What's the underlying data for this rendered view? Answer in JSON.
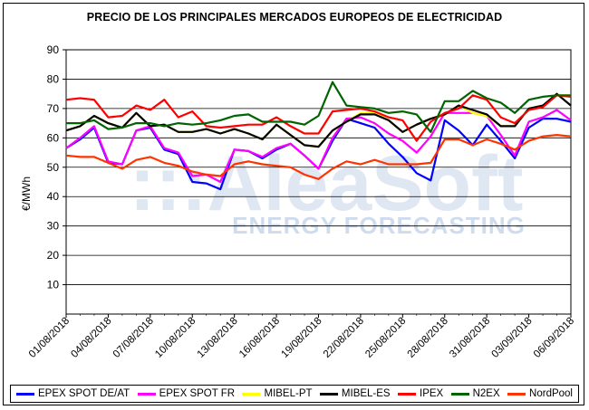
{
  "chart_data": {
    "type": "line",
    "title": "PRECIO DE LOS PRINCIPALES MERCADOS EUROPEOS DE ELECTRICIDAD",
    "ylabel": "€/MWh",
    "xlabel": "",
    "ylim": [
      0,
      90
    ],
    "yticks": [
      10,
      20,
      30,
      40,
      50,
      60,
      70,
      80,
      90
    ],
    "grid": true,
    "legend_position": "bottom",
    "x": [
      "01/08/2018",
      "02/08/2018",
      "03/08/2018",
      "04/08/2018",
      "05/08/2018",
      "06/08/2018",
      "07/08/2018",
      "08/08/2018",
      "09/08/2018",
      "10/08/2018",
      "11/08/2018",
      "12/08/2018",
      "13/08/2018",
      "14/08/2018",
      "15/08/2018",
      "16/08/2018",
      "17/08/2018",
      "18/08/2018",
      "19/08/2018",
      "20/08/2018",
      "21/08/2018",
      "22/08/2018",
      "23/08/2018",
      "24/08/2018",
      "25/08/2018",
      "26/08/2018",
      "27/08/2018",
      "28/08/2018",
      "29/08/2018",
      "30/08/2018",
      "31/08/2018",
      "01/09/2018",
      "02/09/2018",
      "03/09/2018",
      "04/09/2018",
      "05/09/2018",
      "06/09/2018"
    ],
    "tick_labels": [
      "01/08/2018",
      "04/08/2018",
      "07/08/2018",
      "10/08/2018",
      "13/08/2018",
      "16/08/2018",
      "19/08/2018",
      "22/08/2018",
      "25/08/2018",
      "28/08/2018",
      "31/08/2018",
      "03/09/2018",
      "06/09/2018"
    ],
    "series": [
      {
        "name": "EPEX SPOT DE/AT",
        "color": "#0000ff",
        "values": [
          56.5,
          59.5,
          63.5,
          51.5,
          51,
          62.5,
          63.5,
          56,
          54.5,
          45,
          44.5,
          42.5,
          56,
          55.5,
          53,
          56,
          58,
          54,
          49.5,
          59,
          66.5,
          65,
          63.5,
          58,
          53.5,
          48,
          45.5,
          66,
          62.5,
          57.5,
          64.5,
          59,
          53,
          63.5,
          66.5,
          66.5,
          65.5
        ]
      },
      {
        "name": "EPEX SPOT FR",
        "color": "#ff00ff",
        "values": [
          56.5,
          60,
          64,
          52,
          51,
          62.5,
          64,
          56.5,
          55,
          47,
          47.5,
          45,
          56,
          55.5,
          53.5,
          56.5,
          58,
          54,
          49.5,
          60,
          66.5,
          67,
          65,
          61.5,
          59,
          55,
          60.5,
          68.5,
          68.5,
          68.5,
          67.5,
          61,
          54,
          65.5,
          67,
          69.5,
          66
        ]
      },
      {
        "name": "MIBEL-PT",
        "color": "#ffff00",
        "values": [
          62.5,
          64,
          67.5,
          65,
          63.5,
          68.5,
          64,
          64.5,
          62,
          62,
          63,
          61.5,
          63,
          61.5,
          59.5,
          64.5,
          61,
          57.5,
          57,
          62.5,
          65.5,
          68.5,
          68.5,
          66,
          62,
          64.5,
          66.5,
          68,
          71,
          68.5,
          67.5,
          64,
          64,
          70,
          71,
          74.5,
          74.5
        ]
      },
      {
        "name": "MIBEL-ES",
        "color": "#000000",
        "values": [
          62.5,
          64,
          67.5,
          65,
          63.5,
          68.5,
          64,
          64.5,
          62,
          62,
          63,
          61.5,
          63,
          61.5,
          59.5,
          64.5,
          61,
          57.5,
          57,
          62.5,
          65.5,
          68,
          68,
          66,
          62,
          64.5,
          66.5,
          68,
          71,
          69.5,
          68,
          64,
          64,
          70,
          71,
          75,
          71
        ]
      },
      {
        "name": "IPEX",
        "color": "#ff0000",
        "values": [
          73,
          73.5,
          73,
          67,
          67.5,
          71,
          69.5,
          73,
          67,
          69,
          64,
          63.5,
          64,
          64.5,
          64.5,
          67,
          64,
          61.5,
          61.5,
          69,
          69.5,
          70,
          69,
          67,
          66,
          59,
          65.5,
          68.5,
          70,
          74.5,
          73,
          67,
          65,
          69.5,
          70.5,
          74.5,
          74
        ]
      },
      {
        "name": "N2EX",
        "color": "#006400",
        "values": [
          65,
          65,
          66,
          63,
          63.5,
          65,
          65,
          64,
          65,
          64.5,
          65,
          66,
          67.5,
          68,
          65.5,
          65.5,
          65.5,
          64.5,
          67.5,
          79,
          71,
          70.5,
          70,
          68.5,
          69,
          68,
          62,
          72.5,
          72.5,
          76,
          73.5,
          72,
          68.5,
          73,
          74,
          74.5,
          74.5
        ]
      },
      {
        "name": "NordPool",
        "color": "#ff3300",
        "values": [
          54,
          53.5,
          53.5,
          51.5,
          49.5,
          52.5,
          53.5,
          51.5,
          50.5,
          48.5,
          47.5,
          47,
          51,
          52,
          51,
          50.5,
          50,
          47.5,
          46,
          49.5,
          52,
          51,
          52.5,
          51,
          51,
          51,
          51.5,
          59.5,
          59.5,
          57.5,
          59.5,
          58,
          56,
          59,
          60.5,
          61,
          60.5
        ]
      }
    ]
  },
  "watermark": {
    "logo_text": ":::AleaSoft",
    "tagline": "ENERGY FORECASTING"
  }
}
